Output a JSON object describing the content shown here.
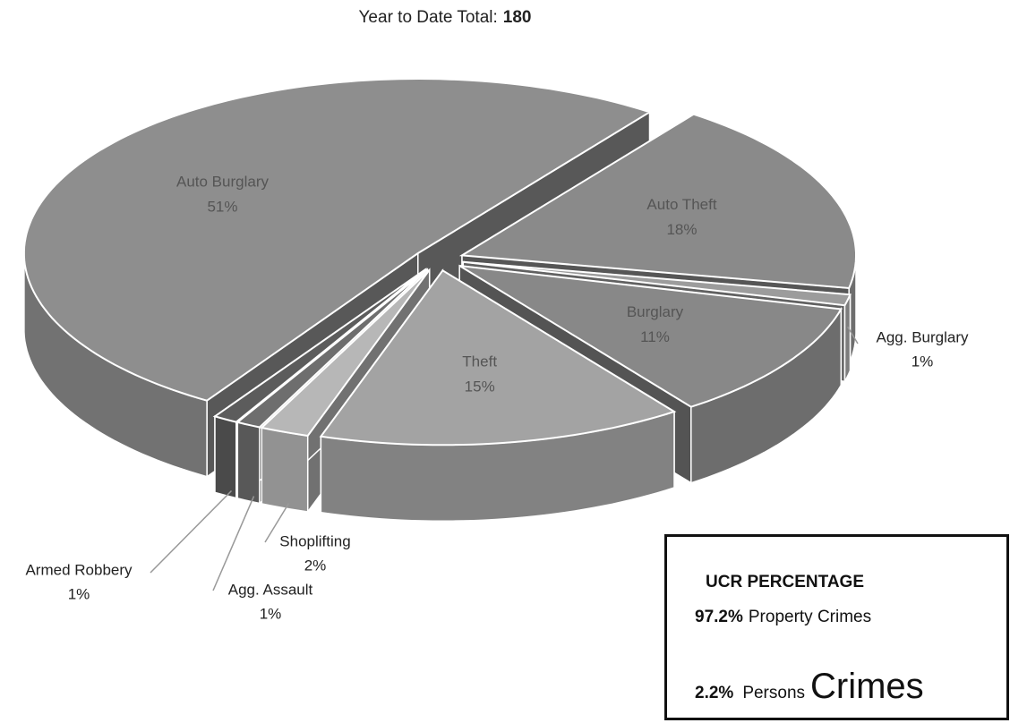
{
  "chart_data": {
    "type": "pie",
    "title": "Year to Date Total:",
    "total": 180,
    "categories": [
      "Auto Burglary",
      "Auto Theft",
      "Agg. Burglary",
      "Burglary",
      "Theft",
      "Shoplifting",
      "Agg. Assault",
      "Armed Robbery"
    ],
    "values": [
      51,
      18,
      1,
      11,
      15,
      2,
      1,
      1
    ],
    "value_labels": [
      "51%",
      "18%",
      "1%",
      "11%",
      "15%",
      "2%",
      "1%",
      "1%"
    ],
    "colors": [
      "#8e8e8e",
      "#8a8a8a",
      "#9c9c9c",
      "#888888",
      "#a3a3a3",
      "#b7b7b7",
      "#6e6e6e",
      "#5c5c5c"
    ],
    "annotation": {
      "heading": "UCR PERCENTAGE",
      "lines": [
        {
          "value_label": "97.2%",
          "text": "Property Crimes"
        },
        {
          "value_label": "2.2%",
          "text": "Persons",
          "emphasis": "Crimes"
        }
      ]
    }
  }
}
